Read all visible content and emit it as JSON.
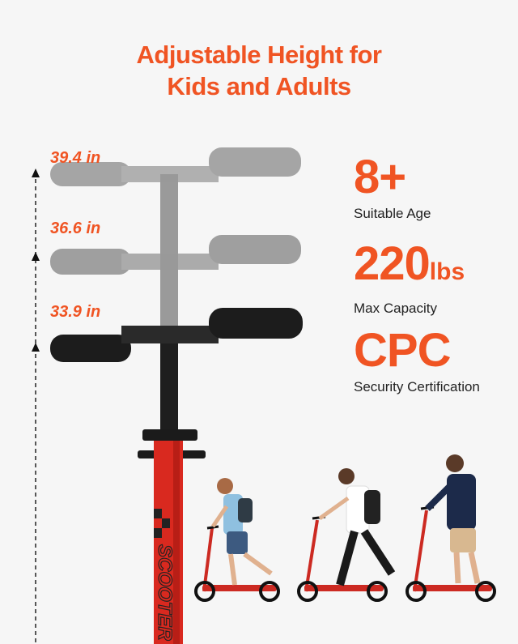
{
  "title": {
    "line1": "Adjustable Height for",
    "line2": "Kids and Adults"
  },
  "heights": [
    "39.4 in",
    "36.6 in",
    "33.9 in"
  ],
  "stats": [
    {
      "value": "8+",
      "unit": "",
      "label": "Suitable Age"
    },
    {
      "value": "220",
      "unit": "lbs",
      "label": "Max Capacity"
    },
    {
      "value": "CPC",
      "unit": "",
      "label": "Security Certification"
    }
  ],
  "stem_logo": "SCOOTER",
  "colors": {
    "accent": "#f05423",
    "stem_red": "#d9291f",
    "grey_bar": "#8c8c8c",
    "black_bar": "#1c1c1c"
  }
}
